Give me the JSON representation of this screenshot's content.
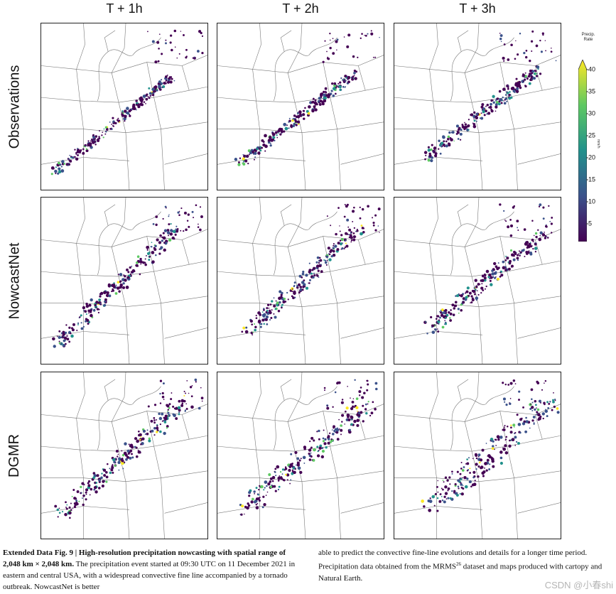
{
  "columns": [
    "T + 1h",
    "T + 2h",
    "T + 3h"
  ],
  "rows": [
    "Observations",
    "NowcastNet",
    "DGMR"
  ],
  "colorbar": {
    "title_line1": "Precip.",
    "title_line2": "Rate",
    "unit": "mm/h",
    "ticks": [
      "40",
      "35",
      "30",
      "25",
      "20",
      "15",
      "10",
      "5"
    ],
    "tick_values": [
      40,
      35,
      30,
      25,
      20,
      15,
      10,
      5
    ],
    "min": 1,
    "max": 40,
    "colors": [
      "#440154",
      "#3b528b",
      "#21918c",
      "#5ec962",
      "#fde725"
    ]
  },
  "caption": {
    "label": "Extended Data Fig. 9 | High-resolution precipitation nowcasting with spatial range of 2,048 km × 2,048 km.",
    "body_left": "The precipitation event started at 09:30 UTC on 11 December 2021 in eastern and central USA, with a widespread convective fine line accompanied by a tornado outbreak. NowcastNet is better",
    "body_right_1": "able to predict the convective fine-line evolutions and details for a longer time period. Precipitation data obtained from the MRMS",
    "body_right_ref": "26",
    "body_right_2": " dataset and maps produced with cartopy and Natural Earth."
  },
  "watermark": "CSDN @小春shi"
}
